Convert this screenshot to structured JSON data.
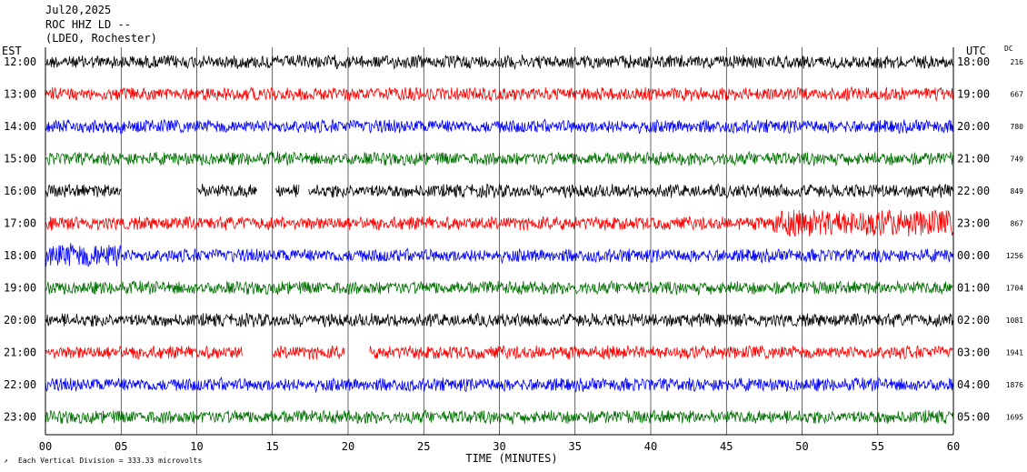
{
  "header": {
    "line1": "Jul20,2025",
    "line2": "ROC HHZ LD --",
    "line3": "(LDEO, Rochester)"
  },
  "chart_data": {
    "type": "line",
    "left_label": "EST",
    "right_label": "UTC",
    "dc_label": "DC",
    "xlabel": "TIME (MINUTES)",
    "x_ticks": [
      "00",
      "05",
      "10",
      "15",
      "20",
      "25",
      "30",
      "35",
      "40",
      "45",
      "50",
      "55",
      "60"
    ],
    "xlim": [
      0,
      60
    ],
    "colors": [
      "#000000",
      "#ff0000",
      "#0000ff",
      "#007000"
    ],
    "rows": [
      {
        "est": "12:00",
        "utc": "18:00",
        "dc": "216"
      },
      {
        "est": "13:00",
        "utc": "19:00",
        "dc": "667"
      },
      {
        "est": "14:00",
        "utc": "20:00",
        "dc": "780"
      },
      {
        "est": "15:00",
        "utc": "21:00",
        "dc": "749"
      },
      {
        "est": "16:00",
        "utc": "22:00",
        "dc": "849"
      },
      {
        "est": "17:00",
        "utc": "23:00",
        "dc": "867"
      },
      {
        "est": "18:00",
        "utc": "00:00",
        "dc": "1256"
      },
      {
        "est": "19:00",
        "utc": "01:00",
        "dc": "1704"
      },
      {
        "est": "20:00",
        "utc": "02:00",
        "dc": "1081"
      },
      {
        "est": "21:00",
        "utc": "03:00",
        "dc": "1941"
      },
      {
        "est": "22:00",
        "utc": "04:00",
        "dc": "1876"
      },
      {
        "est": "23:00",
        "utc": "05:00",
        "dc": "1695"
      }
    ],
    "gaps": [
      {
        "row": 4,
        "start": 5.0,
        "end": 10.0
      },
      {
        "row": 4,
        "start": 14.0,
        "end": 15.2
      },
      {
        "row": 4,
        "start": 16.8,
        "end": 17.4
      },
      {
        "row": 9,
        "start": 13.0,
        "end": 15.0
      },
      {
        "row": 9,
        "start": 19.8,
        "end": 21.4
      }
    ],
    "calibration": "Each Vertical Division =  333.33 microvolts"
  }
}
